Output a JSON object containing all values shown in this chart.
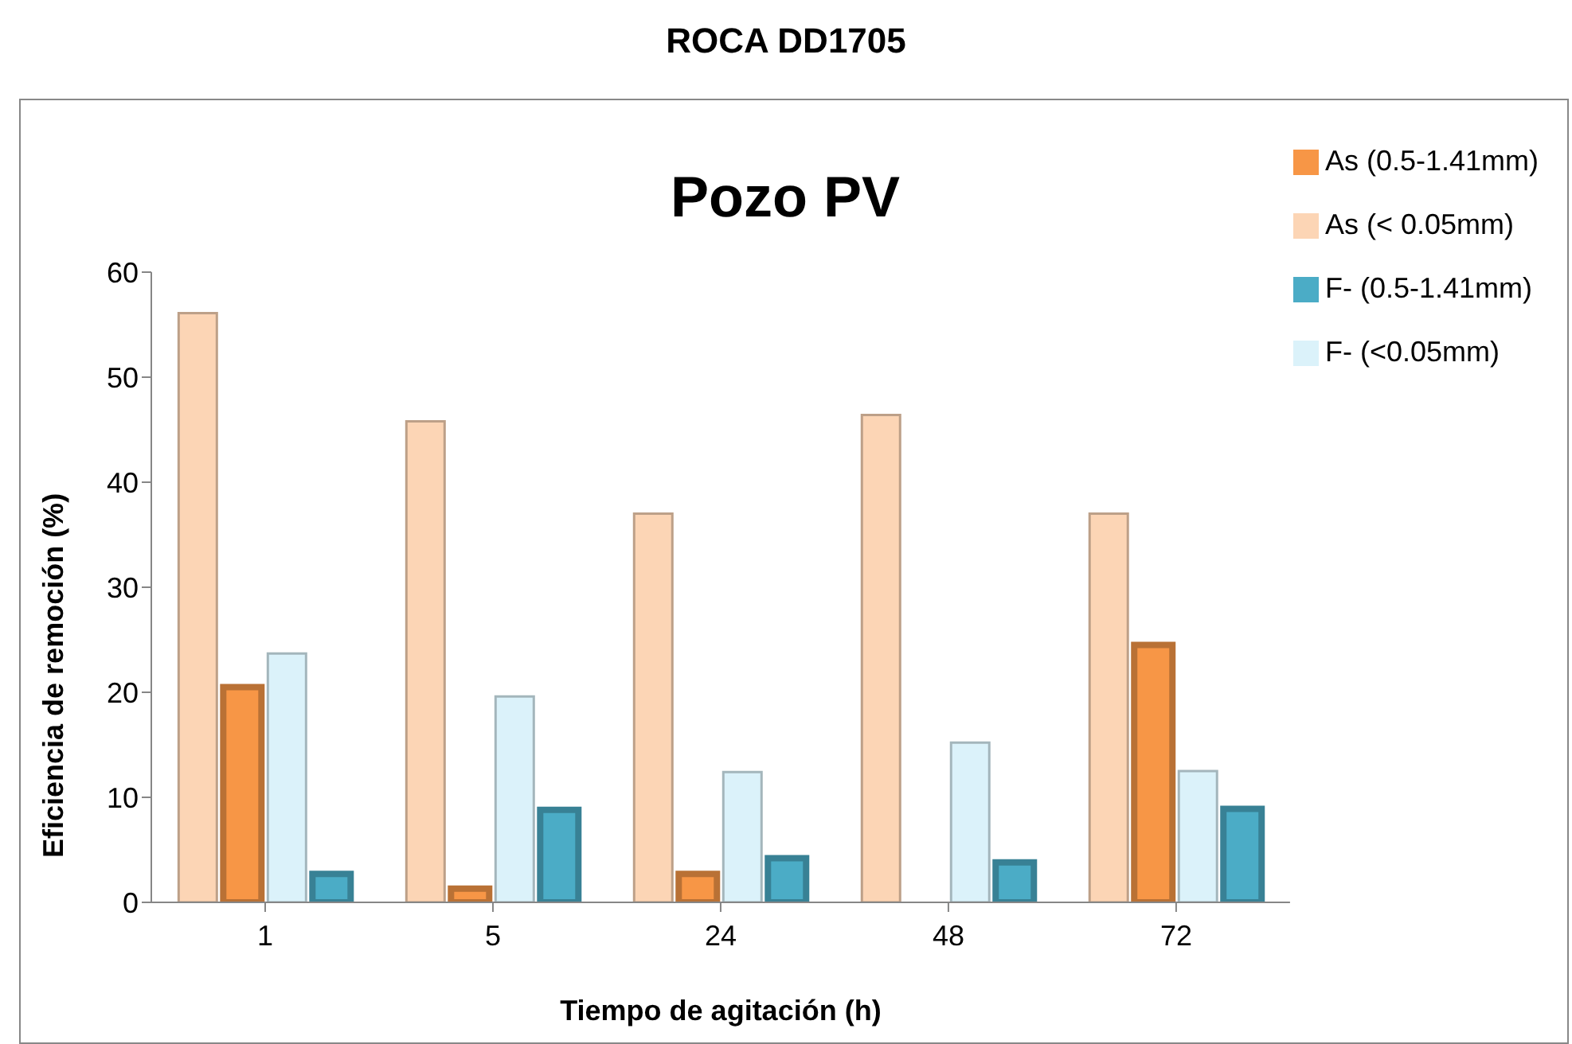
{
  "chart_data": {
    "type": "bar",
    "title": "ROCA DD1705",
    "subtitle": "Pozo PV",
    "xlabel": "Tiempo de agitación (h)",
    "ylabel": "Eficiencia de remoción (%)",
    "categories": [
      "1",
      "5",
      "24",
      "48",
      "72"
    ],
    "series": [
      {
        "name": "As (< 0.05mm)",
        "color": "#fcd5b5",
        "values": [
          56.1,
          45.8,
          37.0,
          46.4,
          37.0
        ]
      },
      {
        "name": "As (0.5-1.41mm)",
        "color": "#f79646",
        "values": [
          20.5,
          1.3,
          2.7,
          null,
          24.5
        ]
      },
      {
        "name": "F- (<0.05mm)",
        "color": "#dbf2fa",
        "values": [
          23.7,
          19.6,
          12.4,
          15.2,
          12.5
        ]
      },
      {
        "name": "F- (0.5-1.41mm)",
        "color": "#4bacc6",
        "values": [
          2.7,
          8.8,
          4.2,
          3.8,
          8.9
        ]
      }
    ],
    "ylim": [
      0,
      60
    ],
    "yticks": [
      0,
      10,
      20,
      30,
      40,
      50,
      60
    ],
    "grid": false,
    "legend": "top right"
  }
}
